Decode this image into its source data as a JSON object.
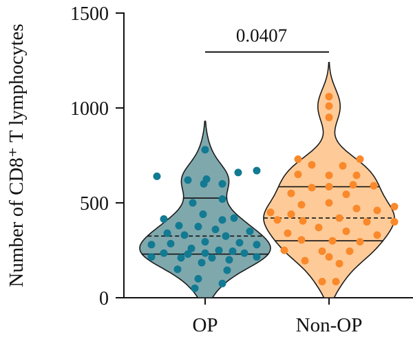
{
  "chart_data": {
    "type": "violin",
    "ylabel": "Number of CD8⁺ T lymphocytes",
    "yticks": [
      0,
      500,
      1000,
      1500
    ],
    "ylim": [
      0,
      1500
    ],
    "categories": [
      "OP",
      "Non-OP"
    ],
    "significance": {
      "label": "0.0407",
      "between": [
        "OP",
        "Non-OP"
      ],
      "y": 1360
    },
    "series": [
      {
        "category": "OP",
        "fill": "#7fa8ad",
        "edge": "#1b1b1b",
        "point_color": "#127a92",
        "range": [
          0,
          930
        ],
        "quartiles": [
          230,
          325,
          525
        ],
        "points": [
          {
            "y": 780,
            "d": 0
          },
          {
            "y": 670,
            "d": 75
          },
          {
            "y": 660,
            "d": 48
          },
          {
            "y": 640,
            "d": -70
          },
          {
            "y": 625,
            "d": 2
          },
          {
            "y": 620,
            "d": -25
          },
          {
            "y": 600,
            "d": 25
          },
          {
            "y": 600,
            "d": -2
          },
          {
            "y": 520,
            "d": 25
          },
          {
            "y": 500,
            "d": -18
          },
          {
            "y": 440,
            "d": -3
          },
          {
            "y": 420,
            "d": 42
          },
          {
            "y": 415,
            "d": -60
          },
          {
            "y": 410,
            "d": 25
          },
          {
            "y": 380,
            "d": -38
          },
          {
            "y": 375,
            "d": -10
          },
          {
            "y": 360,
            "d": 15
          },
          {
            "y": 350,
            "d": 65
          },
          {
            "y": 340,
            "d": -55
          },
          {
            "y": 330,
            "d": -30
          },
          {
            "y": 325,
            "d": 30
          },
          {
            "y": 295,
            "d": 0
          },
          {
            "y": 290,
            "d": 50
          },
          {
            "y": 285,
            "d": -50
          },
          {
            "y": 280,
            "d": 75
          },
          {
            "y": 280,
            "d": -78
          },
          {
            "y": 260,
            "d": -20
          },
          {
            "y": 250,
            "d": 20
          },
          {
            "y": 245,
            "d": 40
          },
          {
            "y": 235,
            "d": -60
          },
          {
            "y": 235,
            "d": 0
          },
          {
            "y": 235,
            "d": 57
          },
          {
            "y": 230,
            "d": -25
          },
          {
            "y": 215,
            "d": -78
          },
          {
            "y": 215,
            "d": 75
          },
          {
            "y": 210,
            "d": -35
          },
          {
            "y": 210,
            "d": 10
          },
          {
            "y": 200,
            "d": 35
          },
          {
            "y": 185,
            "d": -5
          },
          {
            "y": 150,
            "d": -40
          },
          {
            "y": 145,
            "d": 32
          },
          {
            "y": 100,
            "d": -10
          },
          {
            "y": 75,
            "d": 25
          },
          {
            "y": 50,
            "d": -15
          }
        ]
      },
      {
        "category": "Non-OP",
        "fill": "#fecb98",
        "edge": "#1b1b1b",
        "point_color": "#f9892b",
        "range": [
          0,
          1240
        ],
        "quartiles": [
          300,
          420,
          585
        ],
        "points": [
          {
            "y": 1060,
            "d": 0
          },
          {
            "y": 1010,
            "d": 0
          },
          {
            "y": 950,
            "d": 0
          },
          {
            "y": 730,
            "d": -45
          },
          {
            "y": 730,
            "d": 45
          },
          {
            "y": 700,
            "d": -25
          },
          {
            "y": 695,
            "d": 20
          },
          {
            "y": 650,
            "d": -45
          },
          {
            "y": 645,
            "d": 0
          },
          {
            "y": 645,
            "d": 40
          },
          {
            "y": 595,
            "d": 35
          },
          {
            "y": 590,
            "d": 65
          },
          {
            "y": 585,
            "d": 0
          },
          {
            "y": 580,
            "d": -25
          },
          {
            "y": 550,
            "d": -55
          },
          {
            "y": 545,
            "d": 25
          },
          {
            "y": 500,
            "d": 0
          },
          {
            "y": 490,
            "d": -40
          },
          {
            "y": 480,
            "d": 95
          },
          {
            "y": 470,
            "d": 40
          },
          {
            "y": 460,
            "d": 70
          },
          {
            "y": 450,
            "d": -85
          },
          {
            "y": 440,
            "d": -55
          },
          {
            "y": 420,
            "d": 15
          },
          {
            "y": 410,
            "d": -75
          },
          {
            "y": 405,
            "d": -38
          },
          {
            "y": 400,
            "d": 55
          },
          {
            "y": 400,
            "d": 95
          },
          {
            "y": 370,
            "d": -15
          },
          {
            "y": 350,
            "d": 25
          },
          {
            "y": 340,
            "d": -60
          },
          {
            "y": 330,
            "d": 70
          },
          {
            "y": 305,
            "d": -40
          },
          {
            "y": 300,
            "d": 5
          },
          {
            "y": 295,
            "d": 45
          },
          {
            "y": 250,
            "d": -65
          },
          {
            "y": 245,
            "d": -10
          },
          {
            "y": 245,
            "d": 30
          },
          {
            "y": 215,
            "d": 0
          },
          {
            "y": 195,
            "d": -35
          },
          {
            "y": 180,
            "d": 15
          },
          {
            "y": 85,
            "d": -10
          },
          {
            "y": 85,
            "d": 10
          }
        ]
      }
    ]
  }
}
